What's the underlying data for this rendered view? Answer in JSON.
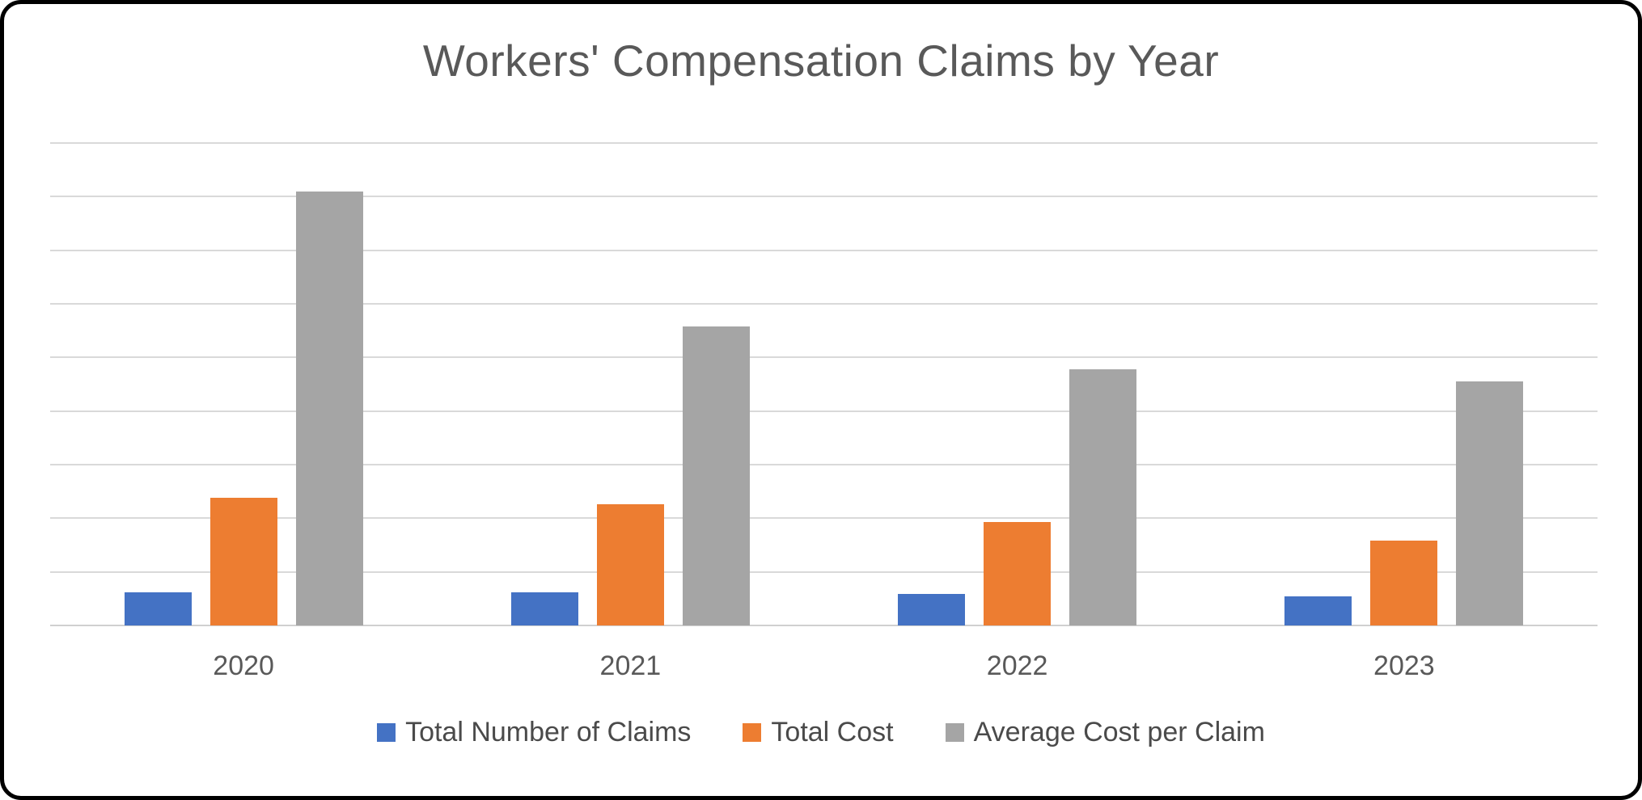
{
  "frame": {
    "border_color": "#000000",
    "background_color": "#ffffff"
  },
  "chart_data": {
    "type": "bar",
    "title": "Workers' Compensation Claims by Year",
    "xlabel": "",
    "ylabel": "",
    "categories": [
      "2020",
      "2021",
      "2022",
      "2023"
    ],
    "series": [
      {
        "name": "Total Number of Claims",
        "color": "#4472C4",
        "values": [
          3100,
          3100,
          2950,
          2700
        ]
      },
      {
        "name": "Total Cost",
        "color": "#ED7D31",
        "values": [
          11900,
          11300,
          9650,
          7900
        ]
      },
      {
        "name": "Average Cost per Claim",
        "color": "#A5A5A5",
        "values": [
          40500,
          27900,
          23900,
          22800
        ]
      }
    ],
    "ylim": [
      0,
      45000
    ],
    "gridline_interval": 5000,
    "grid": true,
    "y_axis_tick_labels_visible": false,
    "legend_position": "bottom",
    "title_color": "#595959",
    "axis_label_color": "#595959",
    "gridline_color": "#d9d9d9"
  }
}
